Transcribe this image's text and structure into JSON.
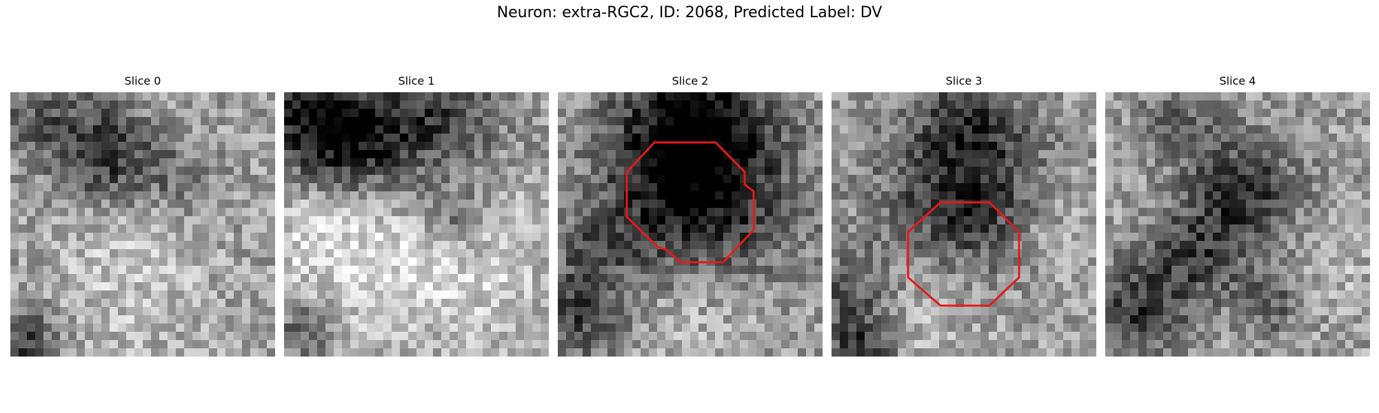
{
  "figure": {
    "title": "Neuron: extra-RGC2, ID: 2068, Predicted Label: DV",
    "outline_color": "#e31a1c"
  },
  "panels": [
    {
      "label": "Slice 0",
      "has_outline": false
    },
    {
      "label": "Slice 1",
      "has_outline": false
    },
    {
      "label": "Slice 2",
      "has_outline": true
    },
    {
      "label": "Slice 3",
      "has_outline": true
    },
    {
      "label": "Slice 4",
      "has_outline": false
    }
  ]
}
